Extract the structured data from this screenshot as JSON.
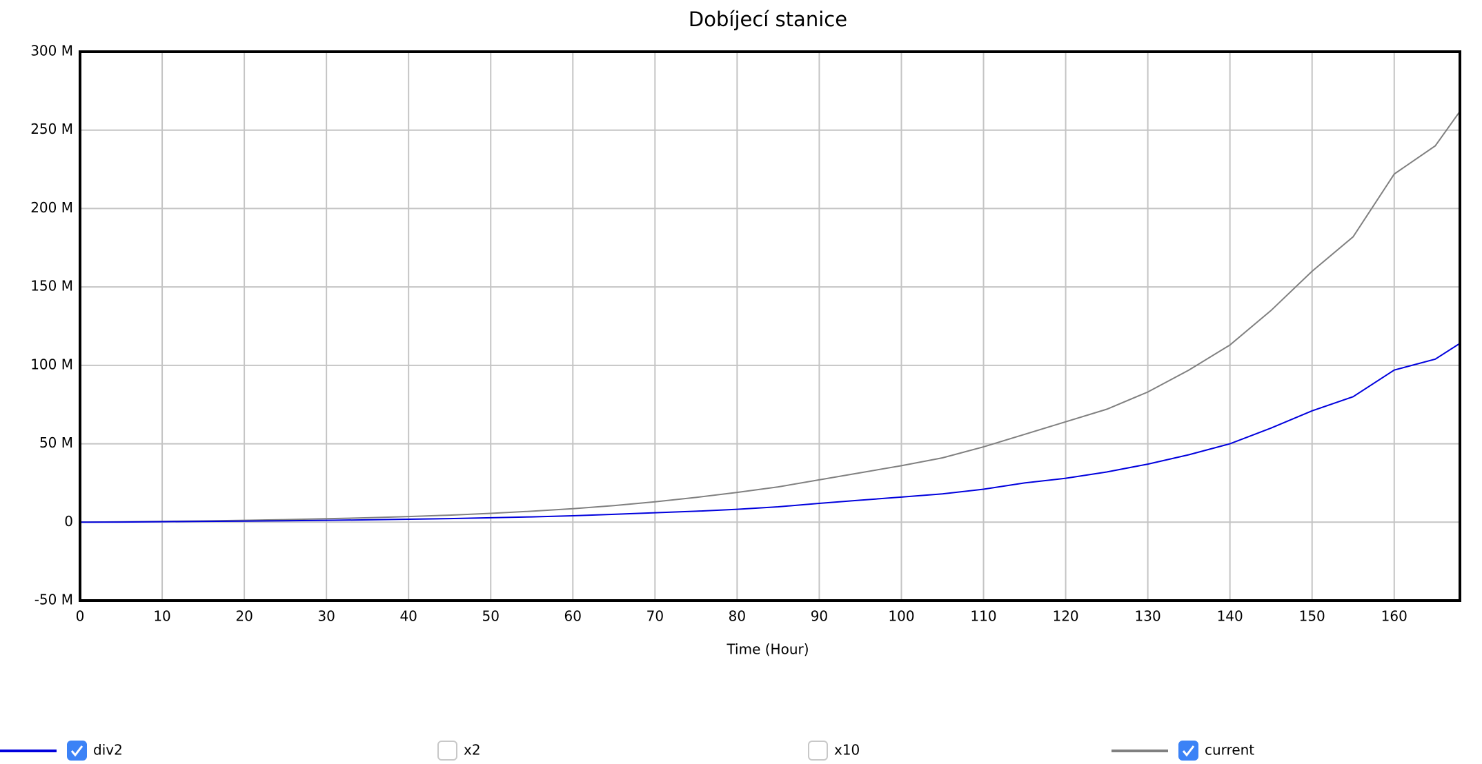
{
  "chart_data": {
    "type": "line",
    "title": "Dobíjecí stanice",
    "x_label": "Time (Hour)",
    "x": [
      0,
      5,
      10,
      15,
      20,
      25,
      30,
      35,
      40,
      45,
      50,
      55,
      60,
      65,
      70,
      75,
      80,
      85,
      90,
      95,
      100,
      105,
      110,
      115,
      120,
      125,
      130,
      135,
      140,
      145,
      150,
      155,
      160,
      165,
      168
    ],
    "series": [
      {
        "name": "div2",
        "color": "#0000dd",
        "checked": true,
        "values": [
          0,
          100000,
          300000,
          500000,
          700000,
          900000,
          1200000,
          1500000,
          1900000,
          2300000,
          2800000,
          3400000,
          4100000,
          5000000,
          6000000,
          7000000,
          8200000,
          9800000,
          12000000,
          14000000,
          16000000,
          18000000,
          21000000,
          25000000,
          28000000,
          32000000,
          37000000,
          43000000,
          50000000,
          60000000,
          71000000,
          80000000,
          97000000,
          104000000,
          114000000
        ]
      },
      {
        "name": "x2",
        "checked": false
      },
      {
        "name": "x10",
        "checked": false
      },
      {
        "name": "current",
        "color": "#808080",
        "checked": true,
        "values": [
          0,
          200000,
          500000,
          800000,
          1200000,
          1600000,
          2200000,
          2800000,
          3600000,
          4500000,
          5600000,
          7000000,
          8600000,
          10600000,
          13000000,
          15800000,
          19000000,
          22500000,
          27000000,
          31500000,
          36000000,
          41000000,
          48000000,
          56000000,
          64000000,
          72000000,
          83000000,
          97000000,
          113000000,
          135000000,
          160000000,
          182000000,
          222000000,
          240000000,
          262000000
        ]
      }
    ],
    "xlim": [
      0,
      168
    ],
    "xticks": [
      0,
      10,
      20,
      30,
      40,
      50,
      60,
      70,
      80,
      90,
      100,
      110,
      120,
      130,
      140,
      150,
      160
    ],
    "ylim": [
      -50000000,
      300000000
    ],
    "yticks": [
      {
        "value": -50000000,
        "label": "-50 M"
      },
      0,
      {
        "value": 50000000,
        "label": "50 M"
      },
      {
        "value": 100000000,
        "label": "100 M"
      },
      {
        "value": 150000000,
        "label": "150 M"
      },
      {
        "value": 200000000,
        "label": "200 M"
      },
      {
        "value": 250000000,
        "label": "250 M"
      },
      {
        "value": 300000000,
        "label": "300 M"
      }
    ],
    "grid": true
  }
}
